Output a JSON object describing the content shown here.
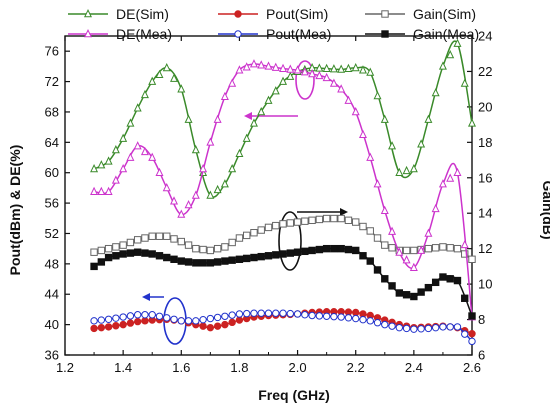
{
  "chart_data": {
    "type": "line",
    "xlabel": "Freq (GHz)",
    "ylabel": "Pout(dBm) & DE(%)",
    "y2label": "Gain(dB)",
    "xlim": [
      1.2,
      2.6
    ],
    "ylim": [
      36,
      78
    ],
    "y2lim": [
      6,
      24
    ],
    "xticks": [
      "1.2",
      "1.4",
      "1.6",
      "1.8",
      "2.0",
      "2.2",
      "2.4",
      "2.6"
    ],
    "yticks": [
      "36",
      "40",
      "44",
      "48",
      "52",
      "56",
      "60",
      "64",
      "68",
      "72",
      "76"
    ],
    "y2ticks": [
      "6",
      "8",
      "10",
      "12",
      "14",
      "16",
      "18",
      "20",
      "22",
      "24"
    ],
    "grid": false,
    "legend_position": "top",
    "legend": [
      "DE(Sim)",
      "Pout(Sim)",
      "Gain(Sim)",
      "DE(Mea)",
      "Pout(Mea)",
      "Gain(Mea)"
    ],
    "series": [
      {
        "name": "DE(Sim)",
        "axis": "left",
        "color": "#3a8a2a",
        "marker": "triangle-open",
        "x": [
          1.3,
          1.35,
          1.4,
          1.45,
          1.5,
          1.55,
          1.6,
          1.65,
          1.7,
          1.75,
          1.8,
          1.85,
          1.9,
          1.95,
          2.0,
          2.05,
          2.1,
          2.15,
          2.2,
          2.25,
          2.3,
          2.35,
          2.4,
          2.45,
          2.5,
          2.55,
          2.6
        ],
        "y": [
          60.5,
          61.5,
          64.5,
          68.5,
          72.0,
          73.8,
          71.0,
          63.0,
          57.0,
          58.5,
          62.5,
          66.5,
          69.5,
          72.0,
          73.3,
          73.8,
          73.7,
          73.6,
          73.8,
          73.2,
          67.0,
          60.0,
          60.5,
          67.0,
          74.0,
          77.0,
          66.5
        ]
      },
      {
        "name": "Pout(Sim)",
        "axis": "left",
        "color": "#cc2222",
        "marker": "circle-filled",
        "x": [
          1.3,
          1.35,
          1.4,
          1.45,
          1.5,
          1.55,
          1.6,
          1.65,
          1.7,
          1.75,
          1.8,
          1.85,
          1.9,
          1.95,
          2.0,
          2.05,
          2.1,
          2.15,
          2.2,
          2.25,
          2.3,
          2.35,
          2.4,
          2.45,
          2.5,
          2.55,
          2.6
        ],
        "y": [
          39.5,
          39.7,
          40.0,
          40.4,
          40.6,
          40.7,
          40.5,
          40.0,
          39.6,
          40.0,
          40.6,
          41.0,
          41.2,
          41.3,
          41.4,
          41.6,
          41.7,
          41.7,
          41.6,
          41.2,
          40.6,
          40.0,
          39.6,
          39.7,
          39.8,
          39.6,
          38.8
        ]
      },
      {
        "name": "Gain(Sim)",
        "axis": "right",
        "color": "#666666",
        "marker": "square-open",
        "x": [
          1.3,
          1.35,
          1.4,
          1.45,
          1.5,
          1.55,
          1.6,
          1.65,
          1.7,
          1.75,
          1.8,
          1.85,
          1.9,
          1.95,
          2.0,
          2.05,
          2.1,
          2.15,
          2.2,
          2.25,
          2.3,
          2.35,
          2.4,
          2.45,
          2.5,
          2.55,
          2.6
        ],
        "y": [
          11.8,
          12.0,
          12.2,
          12.5,
          12.7,
          12.7,
          12.4,
          12.0,
          11.9,
          12.1,
          12.6,
          12.9,
          13.2,
          13.4,
          13.5,
          13.6,
          13.7,
          13.7,
          13.5,
          13.0,
          12.2,
          11.9,
          11.9,
          12.0,
          12.1,
          12.0,
          11.4
        ]
      },
      {
        "name": "DE(Mea)",
        "axis": "left",
        "color": "#cc33cc",
        "marker": "triangle-open",
        "x": [
          1.3,
          1.35,
          1.4,
          1.45,
          1.5,
          1.55,
          1.6,
          1.65,
          1.7,
          1.75,
          1.8,
          1.85,
          1.9,
          1.95,
          2.0,
          2.05,
          2.1,
          2.15,
          2.2,
          2.25,
          2.3,
          2.35,
          2.4,
          2.45,
          2.5,
          2.55,
          2.6
        ],
        "y": [
          57.5,
          57.5,
          60.5,
          63.5,
          62.0,
          58.0,
          54.5,
          57.0,
          64.0,
          70.0,
          73.5,
          74.3,
          74.0,
          73.7,
          73.5,
          73.0,
          72.5,
          71.0,
          68.0,
          62.0,
          55.0,
          49.5,
          47.5,
          52.0,
          58.5,
          60.0,
          41.0
        ]
      },
      {
        "name": "Pout(Mea)",
        "axis": "left",
        "color": "#2233cc",
        "marker": "circle-open",
        "x": [
          1.3,
          1.35,
          1.4,
          1.45,
          1.5,
          1.55,
          1.6,
          1.65,
          1.7,
          1.75,
          1.8,
          1.85,
          1.9,
          1.95,
          2.0,
          2.05,
          2.1,
          2.15,
          2.2,
          2.25,
          2.3,
          2.35,
          2.4,
          2.45,
          2.5,
          2.55,
          2.6
        ],
        "y": [
          40.5,
          40.7,
          41.0,
          41.3,
          41.3,
          40.9,
          40.5,
          40.5,
          40.8,
          41.1,
          41.4,
          41.5,
          41.5,
          41.5,
          41.4,
          41.2,
          41.1,
          41.0,
          40.8,
          40.5,
          40.0,
          39.6,
          39.4,
          39.5,
          39.7,
          39.7,
          37.8
        ]
      },
      {
        "name": "Gain(Mea)",
        "axis": "right",
        "color": "#111111",
        "marker": "square-filled",
        "x": [
          1.3,
          1.35,
          1.4,
          1.45,
          1.5,
          1.55,
          1.6,
          1.65,
          1.7,
          1.75,
          1.8,
          1.85,
          1.9,
          1.95,
          2.0,
          2.05,
          2.1,
          2.15,
          2.2,
          2.25,
          2.3,
          2.35,
          2.4,
          2.45,
          2.5,
          2.55,
          2.6
        ],
        "y": [
          11.0,
          11.5,
          11.7,
          11.8,
          11.7,
          11.5,
          11.3,
          11.2,
          11.2,
          11.3,
          11.4,
          11.5,
          11.6,
          11.7,
          11.8,
          11.9,
          12.0,
          12.0,
          11.9,
          11.3,
          10.3,
          9.5,
          9.3,
          9.8,
          10.4,
          10.2,
          8.2
        ]
      }
    ]
  }
}
